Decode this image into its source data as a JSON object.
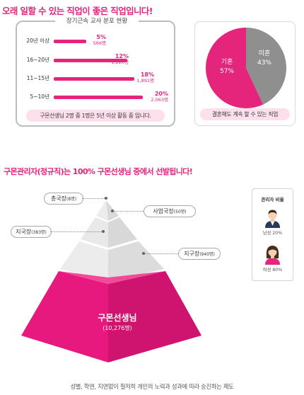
{
  "headline1": "오래 일할 수 있는 직업이 좋은 직업입니다!",
  "tenure": {
    "title": "장기근속 교사 분포 현황",
    "rows": [
      {
        "label": "20년 이상",
        "percent": "5%",
        "count": "566명",
        "value": 5
      },
      {
        "label": "16~20년",
        "percent": "12%",
        "count": "1,220명",
        "value": 12
      },
      {
        "label": "11~15년",
        "percent": "18%",
        "count": "1,891명",
        "value": 18
      },
      {
        "label": "5~10년",
        "percent": "20%",
        "count": "2,063명",
        "value": 20
      }
    ],
    "summary": "구몬선생님 2명 중 1명은 5년 이상 활동 중 입니다."
  },
  "marriage": {
    "slices": [
      {
        "label": "기혼",
        "percent": "57%",
        "value": 57,
        "color": "#e5257c"
      },
      {
        "label": "미혼",
        "percent": "43%",
        "value": 43,
        "color": "#8f8f8f"
      }
    ],
    "caption": "결혼해도 계속 할 수 있는 직업"
  },
  "headline2": "구몬관리자(정규직)는 100% 구몬선생님 중에서 선발됩니다!",
  "pyramid": {
    "roles": {
      "ceo": {
        "name": "총국장",
        "count": "(8명)"
      },
      "biz": {
        "name": "사업국장",
        "count": "(50명)"
      },
      "branch": {
        "name": "지국장",
        "count": "(383명)"
      },
      "district": {
        "name": "지구장",
        "count": "(940명)"
      }
    },
    "base": {
      "name": "구몬선생님",
      "count": "(10,276명)"
    },
    "colors": {
      "base": "#e8197e",
      "base_dark": "#b8126a",
      "light": "#e6e6e6",
      "mid": "#d6d6d6"
    }
  },
  "manager_ratio": {
    "title": "관리자 비율",
    "male": "남성 20%",
    "female": "여성 80%"
  },
  "footer": "성별, 학연, 지연없이 철저히 개인의 노력과 성과에 따라 승진하는 제도"
}
